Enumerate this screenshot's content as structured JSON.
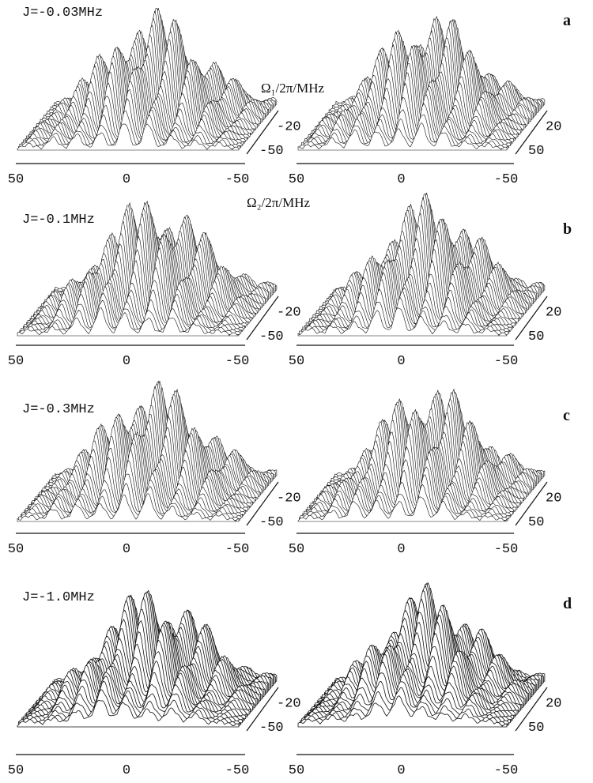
{
  "figure": {
    "axis_labels": {
      "omega1": "Ω₁/2π/MHz",
      "omega2": "Ω₂/2π/MHz"
    },
    "panels": [
      {
        "letter": "a",
        "j_label": "J=-0.03MHz",
        "plots": [
          {
            "xticks": [
              50,
              0,
              -50
            ],
            "depth_ticks": [
              -20,
              -50
            ]
          },
          {
            "xticks": [
              50,
              0,
              -50
            ],
            "depth_ticks": [
              20,
              50
            ]
          }
        ]
      },
      {
        "letter": "b",
        "j_label": "J=-0.1MHz",
        "plots": [
          {
            "xticks": [
              50,
              0,
              -50
            ],
            "depth_ticks": [
              -20,
              -50
            ]
          },
          {
            "xticks": [
              50,
              0,
              -50
            ],
            "depth_ticks": [
              20,
              50
            ]
          }
        ]
      },
      {
        "letter": "c",
        "j_label": "J=-0.3MHz",
        "plots": [
          {
            "xticks": [
              50,
              0,
              -50
            ],
            "depth_ticks": [
              -20,
              -50
            ]
          },
          {
            "xticks": [
              50,
              0,
              -50
            ],
            "depth_ticks": [
              20,
              50
            ]
          }
        ]
      },
      {
        "letter": "d",
        "j_label": "J=-1.0MHz",
        "plots": [
          {
            "xticks": [
              50,
              0,
              -50
            ],
            "depth_ticks": [
              -20,
              -50
            ]
          },
          {
            "xticks": [
              50,
              0,
              -50
            ],
            "depth_ticks": [
              20,
              50
            ]
          }
        ]
      }
    ]
  }
}
